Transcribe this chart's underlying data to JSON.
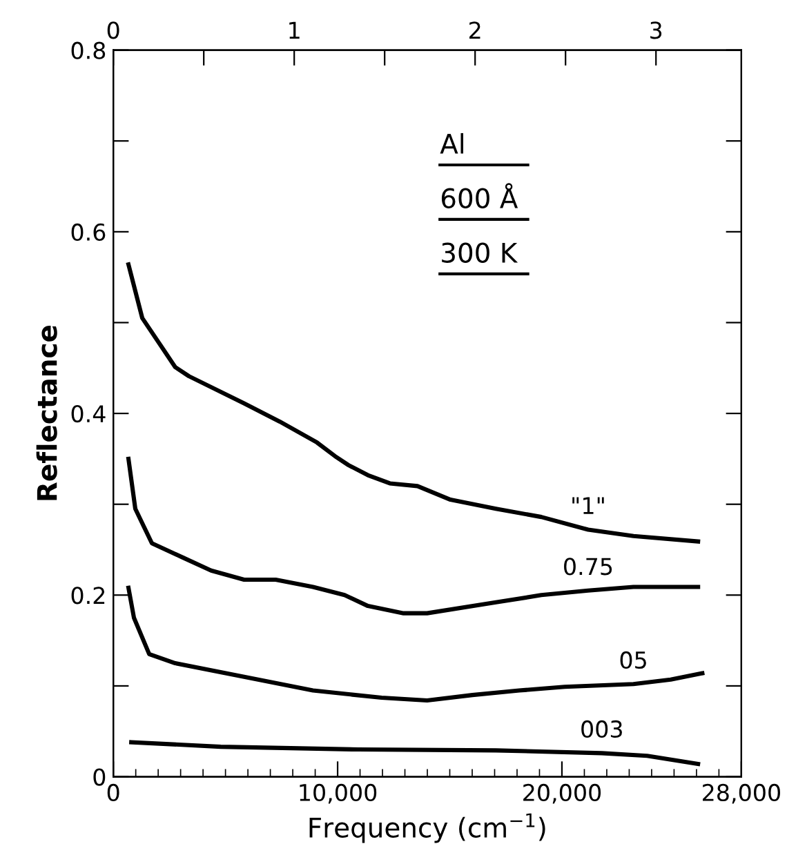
{
  "chart_data": {
    "type": "line",
    "xlabel": "Frequency (cm$^{−1}$)",
    "ylabel": "Reflectance",
    "xlim": [
      0,
      28000
    ],
    "xticks": [
      0,
      {
        "value": 10000,
        "label": "10,000"
      },
      {
        "value": 20000,
        "label": "20,000"
      },
      {
        "value": 28000,
        "label": "28,000"
      }
    ],
    "ylim": [
      0,
      0.8
    ],
    "yticks": [
      0,
      {
        "value": 0.1,
        "label": null
      },
      0.2,
      {
        "value": 0.3,
        "label": null
      },
      0.4,
      {
        "value": 0.5,
        "label": null
      },
      0.6,
      {
        "value": 0.7,
        "label": null
      },
      0.8
    ],
    "x2lim": [
      0,
      3.472
    ],
    "x2ticks": [
      0,
      {
        "value": 0.5,
        "label": null
      },
      1,
      {
        "value": 1.5,
        "label": null
      },
      2,
      {
        "value": 2.5,
        "label": null
      },
      3
    ],
    "annotations": [
      "Al",
      "600 Å",
      "300 K"
    ],
    "grid": false,
    "legend": false,
    "marker": "none",
    "line_style": "solid",
    "series": [
      {
        "name": "\"1\"",
        "color": "#000000",
        "x": [
          675,
          1290,
          2760,
          3370,
          5830,
          7420,
          9080,
          9880,
          10490,
          11350,
          12330,
          13560,
          15030,
          17060,
          19080,
          21170,
          23190,
          26070
        ],
        "values": [
          0.564,
          0.505,
          0.451,
          0.441,
          0.411,
          0.391,
          0.368,
          0.353,
          0.343,
          0.332,
          0.323,
          0.32,
          0.305,
          0.295,
          0.286,
          0.272,
          0.265,
          0.259
        ]
      },
      {
        "name": "0.75",
        "color": "#000000",
        "x": [
          675,
          980,
          1720,
          3130,
          4360,
          5830,
          7240,
          8900,
          10310,
          11350,
          12940,
          13990,
          17060,
          19080,
          21170,
          23190,
          26070
        ],
        "values": [
          0.35,
          0.295,
          0.257,
          0.241,
          0.227,
          0.217,
          0.217,
          0.209,
          0.2,
          0.188,
          0.18,
          0.18,
          0.192,
          0.2,
          0.205,
          0.209,
          0.209
        ]
      },
      {
        "name": "05",
        "color": "#000000",
        "x": [
          675,
          920,
          1600,
          2760,
          5830,
          8900,
          11960,
          13990,
          16010,
          18100,
          20120,
          23190,
          24850,
          26260
        ],
        "values": [
          0.208,
          0.175,
          0.135,
          0.125,
          0.11,
          0.095,
          0.087,
          0.084,
          0.09,
          0.095,
          0.099,
          0.102,
          0.107,
          0.114
        ]
      },
      {
        "name": "003",
        "color": "#000000",
        "x": [
          800,
          4790,
          10920,
          17060,
          21780,
          23800,
          26070
        ],
        "values": [
          0.038,
          0.033,
          0.03,
          0.029,
          0.026,
          0.023,
          0.014
        ]
      }
    ]
  }
}
